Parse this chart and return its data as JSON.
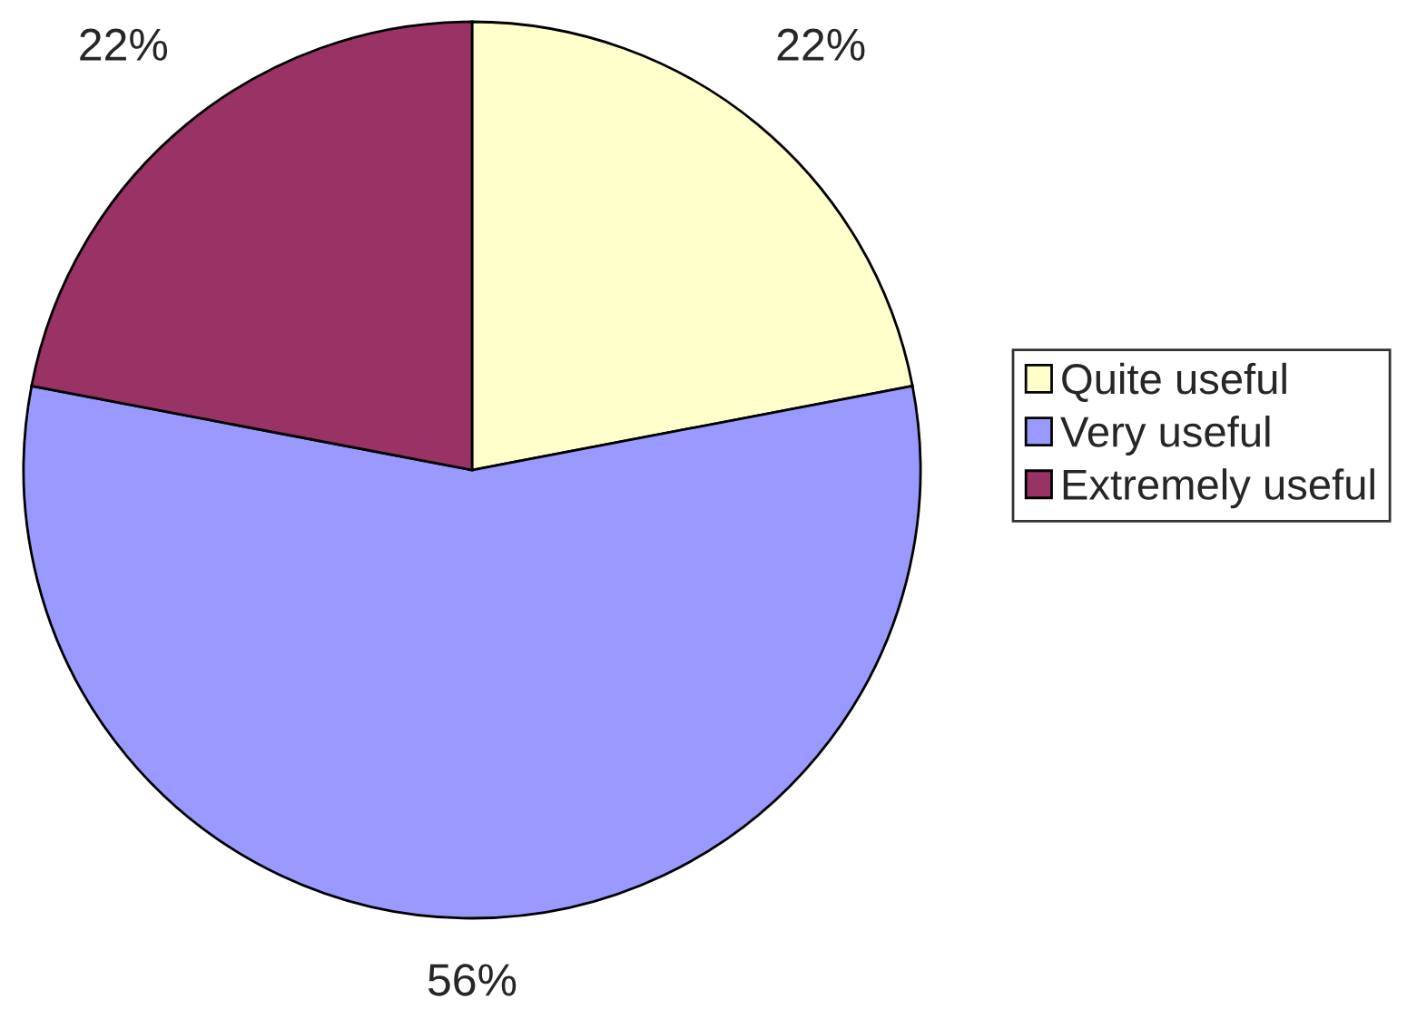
{
  "chart_data": {
    "type": "pie",
    "categories": [
      "Quite useful",
      "Very useful",
      "Extremely useful"
    ],
    "values": [
      22,
      56,
      22
    ],
    "colors": [
      "#ffffcc",
      "#9999ff",
      "#993366"
    ],
    "value_labels": [
      "22%",
      "56%",
      "22%"
    ],
    "legend": "right"
  }
}
